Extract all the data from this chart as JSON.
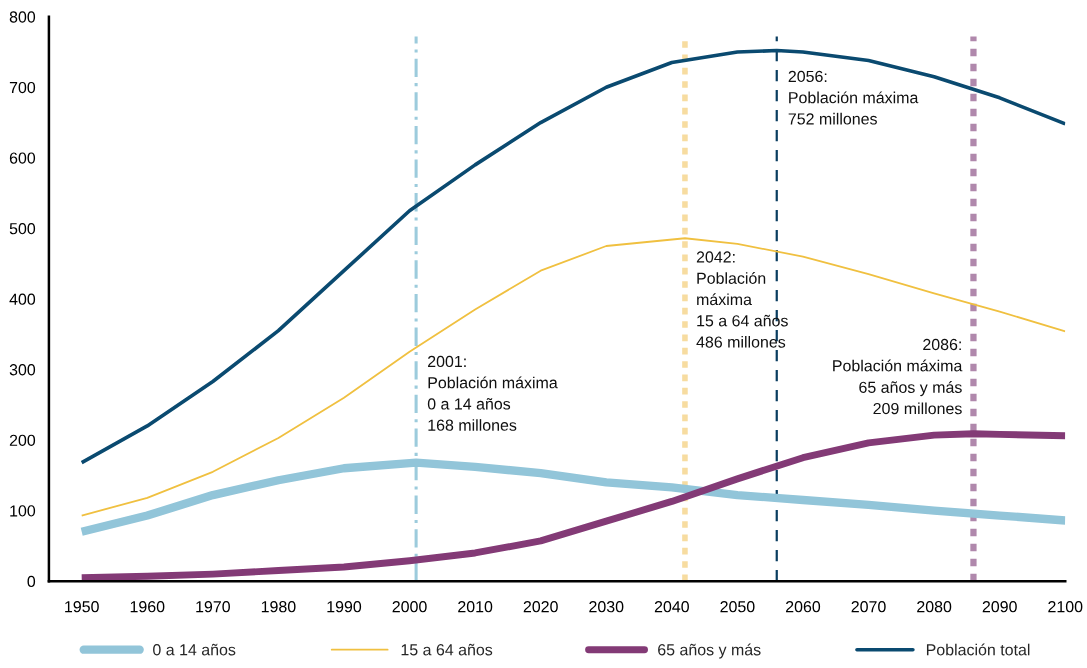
{
  "chart_data": {
    "type": "line",
    "xlim": [
      1945,
      2100
    ],
    "ylim": [
      0,
      800
    ],
    "xticks": [
      1950,
      1960,
      1970,
      1980,
      1990,
      2000,
      2010,
      2020,
      2030,
      2040,
      2050,
      2060,
      2070,
      2080,
      2090,
      2100
    ],
    "yticks": [
      0,
      100,
      200,
      300,
      400,
      500,
      600,
      700,
      800
    ],
    "grid": false,
    "legend": "bottom",
    "marker": "none",
    "line_style": "solid",
    "series": [
      {
        "name": "0 a 14 años",
        "color": "#92c5d9",
        "x": [
          1950,
          1960,
          1970,
          1980,
          1990,
          2001,
          2010,
          2020,
          2030,
          2040,
          2050,
          2060,
          2070,
          2080,
          2090,
          2100
        ],
        "values": [
          70,
          93,
          122,
          143,
          160,
          168,
          162,
          153,
          140,
          133,
          122,
          115,
          108,
          100,
          93,
          86
        ]
      },
      {
        "name": "15 a 64 años",
        "color": "#f0c040",
        "x": [
          1950,
          1960,
          1970,
          1980,
          1990,
          2000,
          2010,
          2020,
          2030,
          2042,
          2050,
          2060,
          2070,
          2080,
          2090,
          2100
        ],
        "values": [
          93,
          118,
          155,
          203,
          260,
          325,
          385,
          440,
          475,
          486,
          478,
          460,
          435,
          408,
          382,
          354
        ]
      },
      {
        "name": "65 años y más",
        "color": "#833a76",
        "x": [
          1950,
          1960,
          1970,
          1980,
          1990,
          2000,
          2010,
          2020,
          2030,
          2040,
          2050,
          2060,
          2070,
          2080,
          2086,
          2090,
          2100
        ],
        "values": [
          5,
          7,
          10,
          15,
          20,
          29,
          40,
          57,
          85,
          113,
          145,
          175,
          196,
          207,
          209,
          208,
          206
        ]
      },
      {
        "name": "Población total",
        "color": "#0a4a70",
        "x": [
          1950,
          1960,
          1970,
          1980,
          1990,
          2000,
          2010,
          2020,
          2030,
          2040,
          2050,
          2056,
          2060,
          2070,
          2080,
          2090,
          2100
        ],
        "values": [
          168,
          220,
          283,
          355,
          440,
          525,
          590,
          650,
          700,
          735,
          750,
          752,
          750,
          738,
          715,
          685,
          648
        ]
      }
    ],
    "ref_lines": [
      {
        "axis": "x",
        "value": 2001,
        "label": "2001:\nPoblación máxima\n0 a 14 años\n168 millones",
        "color": "#9ccbdc",
        "line_style": "dashdot"
      },
      {
        "axis": "x",
        "value": 2042,
        "label": "2042:\nPoblación\nmáxima\n15 a 64 años\n486 millones",
        "color": "#f7dca0",
        "line_style": "dotted"
      },
      {
        "axis": "x",
        "value": 2056,
        "label": "2056:\nPoblación máxima\n752 millones",
        "color": "#0a3d60",
        "line_style": "dashed"
      },
      {
        "axis": "x",
        "value": 2086,
        "label": "2086:\nPoblación máxima\n65 años y más\n209 millones",
        "color": "#b088ac",
        "line_style": "dotted"
      }
    ]
  }
}
